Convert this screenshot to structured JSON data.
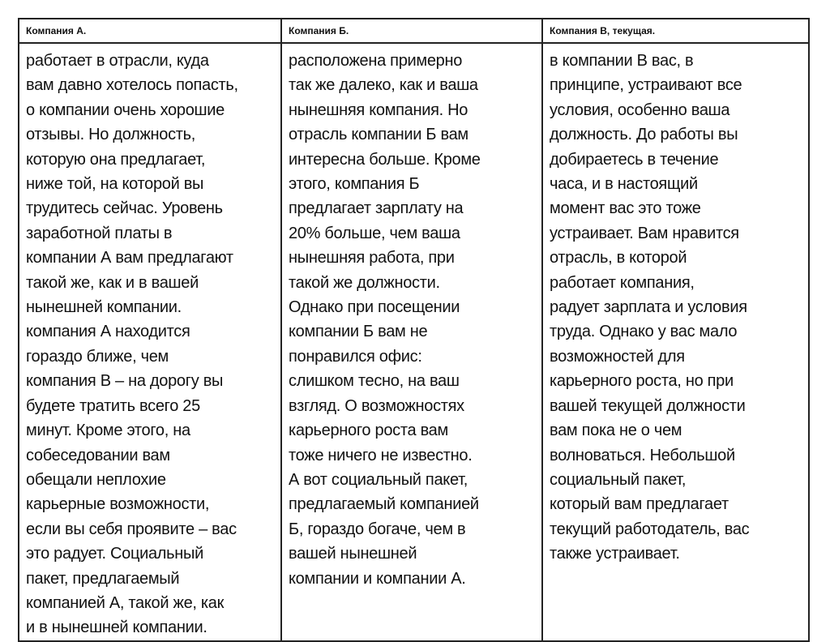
{
  "table": {
    "headers": [
      "Компания А.",
      "Компания Б.",
      "Компания В, текущая."
    ],
    "columns": [
      [
        "работает в отрасли, куда",
        "вам давно хотелось попасть,",
        "о компании очень хорошие",
        "отзывы. Но должность,",
        "которую она предлагает,",
        "ниже той, на которой вы",
        "трудитесь сейчас. Уровень",
        "заработной платы в",
        "компании А вам предлагают",
        "такой же, как и в вашей",
        "нынешней компании.",
        "компания А находится",
        "гораздо ближе, чем",
        "компания В – на дорогу вы",
        "будете тратить всего 25",
        "минут. Кроме этого, на",
        "собеседовании вам",
        "обещали неплохие",
        "карьерные возможности,",
        "если вы себя проявите – вас",
        "это радует. Социальный",
        "пакет, предлагаемый",
        "компанией А, такой же, как",
        "и в нынешней компании."
      ],
      [
        "расположена примерно",
        "так же далеко, как и ваша",
        "нынешняя компания. Но",
        "отрасль компании Б вам",
        "интересна больше. Кроме",
        "этого, компания Б",
        "предлагает зарплату на",
        "20% больше, чем ваша",
        "нынешняя работа, при",
        "такой же должности.",
        "Однако при посещении",
        "компании Б вам не",
        "понравился офис:",
        "слишком тесно, на ваш",
        "взгляд. О возможностях",
        "карьерного роста вам",
        "тоже ничего не известно.",
        "А вот социальный пакет,",
        "предлагаемый компанией",
        "Б, гораздо богаче, чем в",
        "вашей нынешней",
        "компании и компании А."
      ],
      [
        "в компании В вас, в",
        "принципе, устраивают все",
        "условия, особенно ваша",
        "должность. До работы вы",
        "добираетесь в течение",
        "часа, и в настоящий",
        "момент вас это тоже",
        "устраивает. Вам нравится",
        "отрасль, в которой",
        "работает компания,",
        "радует зарплата и условия",
        "труда. Однако у вас мало",
        "возможностей для",
        "карьерного роста, но при",
        "вашей текущей должности",
        "вам пока не о чем",
        "волноваться. Небольшой",
        "социальный пакет,",
        "который вам предлагает",
        "текущий работодатель, вас",
        "также устраивает."
      ]
    ]
  }
}
